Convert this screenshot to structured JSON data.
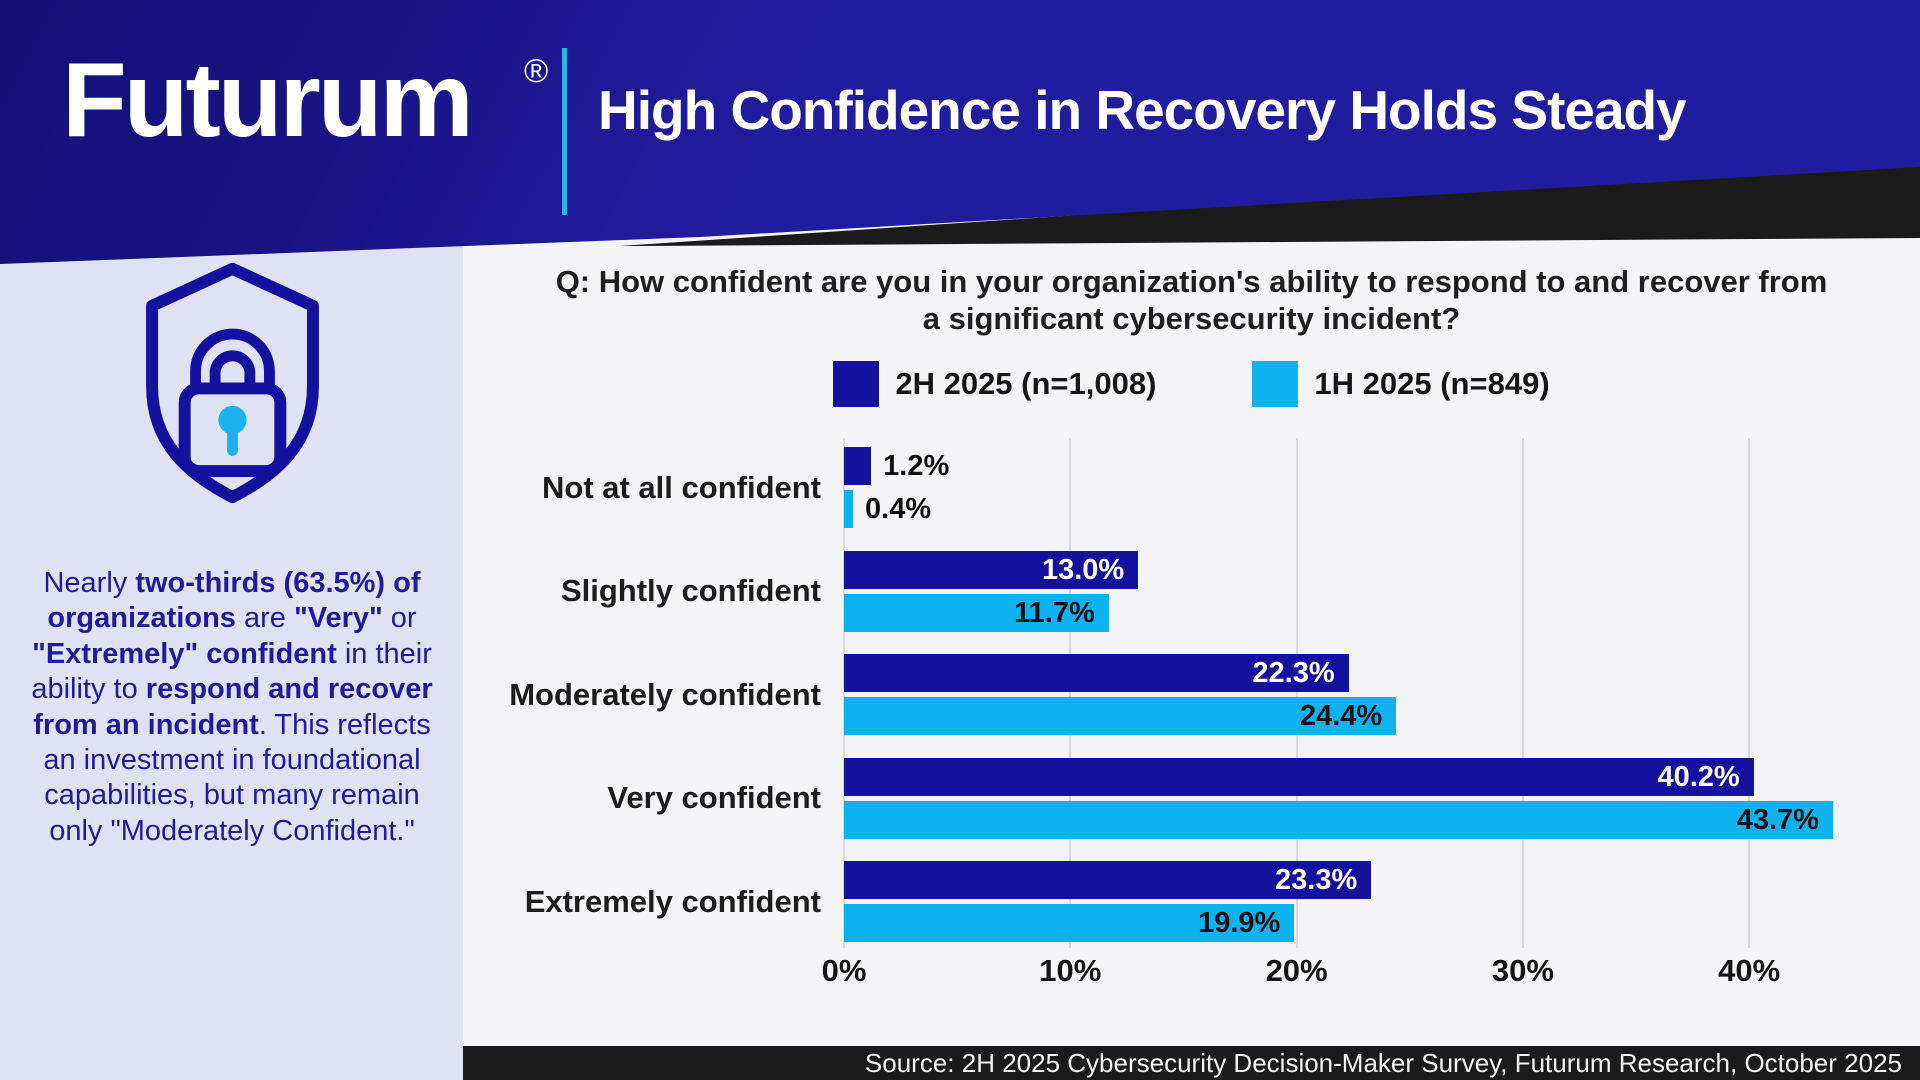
{
  "header": {
    "logo_text": "Futurum",
    "registered_mark": "®",
    "title": "High Confidence in Recovery Holds Steady"
  },
  "sidebar": {
    "icon": "shield-lock-icon",
    "note_segments": [
      {
        "t": "Nearly "
      },
      {
        "t": "two-thirds (63.5%) of organizations"
      },
      {
        "t": " are "
      },
      {
        "t": "\"Very\""
      },
      {
        "t": " or "
      },
      {
        "t": "\"Extremely\" confident"
      },
      {
        "t": " in their ability to "
      },
      {
        "t": "respond and recover from an incident"
      },
      {
        "t": ". This reflects an investment in foundational capabilities, but many remain only \"Moderately Confident.\""
      }
    ]
  },
  "main": {
    "question_line1": "Q: How confident are you in your organization's ability to respond to and recover from",
    "question_line2": "a significant cybersecurity incident?"
  },
  "chart_data": {
    "type": "bar",
    "orientation": "horizontal",
    "title": "Q: How confident are you in your organization's ability to respond to and recover from a significant cybersecurity incident?",
    "categories": [
      "Not at all confident",
      "Slightly confident",
      "Moderately confident",
      "Very confident",
      "Extremely confident"
    ],
    "series": [
      {
        "name": "2H 2025 (n=1,008)",
        "color": "#14119e",
        "values": [
          1.2,
          13.0,
          22.3,
          40.2,
          23.3
        ]
      },
      {
        "name": "1H 2025 (n=849)",
        "color": "#0cb3f0",
        "values": [
          0.4,
          11.7,
          24.4,
          43.7,
          19.9
        ]
      }
    ],
    "value_labels": [
      [
        "1.2%",
        "13.0%",
        "22.3%",
        "40.2%",
        "23.3%"
      ],
      [
        "0.4%",
        "11.7%",
        "24.4%",
        "43.7%",
        "19.9%"
      ]
    ],
    "xlabel_ticks": [
      "0%",
      "10%",
      "20%",
      "30%",
      "40%"
    ],
    "xlim": [
      0,
      45.8
    ],
    "grid": true,
    "legend_position": "top-center"
  },
  "footer": {
    "source": "Source: 2H 2025 Cybersecurity Decision-Maker Survey, Futurum Research, October 2025"
  },
  "colors": {
    "header_navy": "#201c9e",
    "dark_blue": "#14119e",
    "light_blue": "#0cb3f0",
    "cyan_accent": "#2bb3ea",
    "sidebar_lavender": "#dfe2f3",
    "content_gray": "#f4f4f6",
    "band_black": "#1b1b1b",
    "note_navy": "#1e1c9c"
  }
}
